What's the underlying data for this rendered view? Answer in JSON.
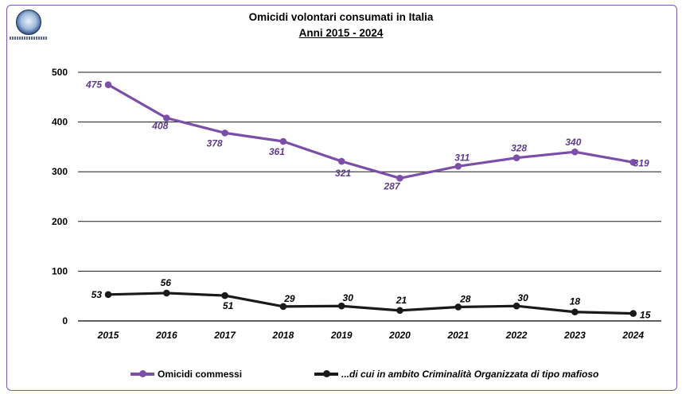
{
  "chart_data": {
    "type": "line",
    "title": "Omicidi volontari consumati in Italia",
    "subtitle": "Anni 2015 - 2024",
    "categories": [
      "2015",
      "2016",
      "2017",
      "2018",
      "2019",
      "2020",
      "2021",
      "2022",
      "2023",
      "2024"
    ],
    "series": [
      {
        "name": "Omicidi commessi",
        "values": [
          475,
          408,
          378,
          361,
          321,
          287,
          311,
          328,
          340,
          319
        ],
        "color": "#7b4fa8",
        "label_color": "#5e3a8c"
      },
      {
        "name": "...di cui in ambito Criminalità Organizzata di tipo mafioso",
        "values": [
          53,
          56,
          51,
          29,
          30,
          21,
          28,
          30,
          18,
          15
        ],
        "color": "#1a1a1a",
        "label_color": "#000000"
      }
    ],
    "ylim": [
      0,
      500
    ],
    "yticks": [
      0,
      100,
      200,
      300,
      400,
      500
    ],
    "grid": true,
    "legend": "bottom"
  }
}
